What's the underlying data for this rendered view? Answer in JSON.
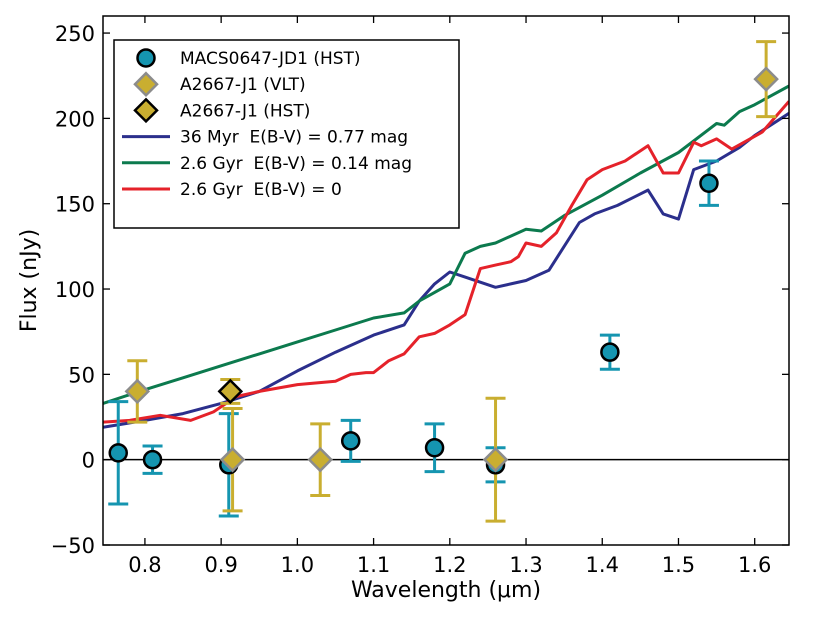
{
  "chart_data": {
    "type": "scatter",
    "xlabel": "Wavelength (μm)",
    "ylabel": "Flux (nJy)",
    "xlim": [
      0.745,
      1.645
    ],
    "ylim": [
      -50,
      260
    ],
    "x_ticks": [
      0.8,
      0.9,
      1.0,
      1.1,
      1.2,
      1.3,
      1.4,
      1.5,
      1.6
    ],
    "x_tick_labels": [
      "0.8",
      "0.9",
      "1.0",
      "1.1",
      "1.2",
      "1.3",
      "1.4",
      "1.5",
      "1.6"
    ],
    "y_ticks": [
      -50,
      0,
      50,
      100,
      150,
      200,
      250
    ],
    "y_tick_labels": [
      "−50",
      "0",
      "50",
      "100",
      "150",
      "200",
      "250"
    ],
    "grid": false,
    "zero_line": true,
    "legend_position": "top-left",
    "series": [
      {
        "name": "MACS0647-JD1 (HST)",
        "kind": "points",
        "marker": "circle",
        "color": "#1595b0",
        "edge_color": "#000000",
        "errbar_color": "#1595b0",
        "points": [
          {
            "x": 0.765,
            "y": 4,
            "err": 30
          },
          {
            "x": 0.81,
            "y": 0,
            "err": 8
          },
          {
            "x": 0.91,
            "y": -3,
            "err": 30
          },
          {
            "x": 1.07,
            "y": 11,
            "err": 12
          },
          {
            "x": 1.18,
            "y": 7,
            "err": 14
          },
          {
            "x": 1.26,
            "y": -3,
            "err": 10
          },
          {
            "x": 1.41,
            "y": 63,
            "err": 10
          },
          {
            "x": 1.54,
            "y": 162,
            "err": 13
          }
        ]
      },
      {
        "name": "A2667-J1 (VLT)",
        "kind": "points",
        "marker": "diamond",
        "color": "#c9ae30",
        "edge_color": "#8c8c8c",
        "errbar_color": "#c9ae30",
        "points": [
          {
            "x": 0.79,
            "y": 40,
            "err": 18
          },
          {
            "x": 0.915,
            "y": 0,
            "err": 30
          },
          {
            "x": 1.03,
            "y": 0,
            "err": 21
          },
          {
            "x": 1.26,
            "y": 0,
            "err": 36
          },
          {
            "x": 1.615,
            "y": 223,
            "err": 22
          }
        ]
      },
      {
        "name": "A2667-J1 (HST)",
        "kind": "points",
        "marker": "diamond",
        "color": "#c9ae30",
        "edge_color": "#000000",
        "errbar_color": "#c9ae30",
        "points": [
          {
            "x": 0.912,
            "y": 40,
            "err": 7
          }
        ]
      },
      {
        "name": "36 Myr  E(B-V) = 0.77 mag",
        "kind": "line",
        "color": "#2b2f8c",
        "x": [
          0.745,
          0.8,
          0.85,
          0.9,
          0.95,
          1.0,
          1.05,
          1.1,
          1.14,
          1.16,
          1.18,
          1.2,
          1.22,
          1.24,
          1.26,
          1.28,
          1.3,
          1.33,
          1.37,
          1.39,
          1.42,
          1.46,
          1.48,
          1.5,
          1.52,
          1.55,
          1.58,
          1.6,
          1.645
        ],
        "y": [
          19,
          23,
          27,
          33,
          40,
          52,
          63,
          73,
          79,
          93,
          103,
          110,
          107,
          104,
          101,
          103,
          105,
          111,
          139,
          144,
          149,
          158,
          144,
          141,
          170,
          175,
          183,
          190,
          203
        ]
      },
      {
        "name": "2.6 Gyr  E(B-V) = 0.14 mag",
        "kind": "line",
        "color": "#0c7a4e",
        "x": [
          0.745,
          0.8,
          0.85,
          0.9,
          0.95,
          1.0,
          1.05,
          1.1,
          1.14,
          1.16,
          1.18,
          1.2,
          1.22,
          1.24,
          1.26,
          1.28,
          1.3,
          1.32,
          1.35,
          1.4,
          1.45,
          1.5,
          1.55,
          1.56,
          1.58,
          1.6,
          1.645
        ],
        "y": [
          33,
          41,
          48,
          55,
          62,
          69,
          76,
          83,
          86,
          93,
          98,
          103,
          121,
          125,
          127,
          131,
          135,
          134,
          143,
          155,
          168,
          180,
          197,
          196,
          204,
          208,
          219
        ]
      },
      {
        "name": "2.6 Gyr  E(B-V) = 0",
        "kind": "line",
        "color": "#e5222a",
        "x": [
          0.745,
          0.78,
          0.82,
          0.86,
          0.89,
          0.92,
          0.95,
          1.0,
          1.05,
          1.07,
          1.09,
          1.1,
          1.12,
          1.14,
          1.16,
          1.18,
          1.2,
          1.22,
          1.24,
          1.26,
          1.28,
          1.29,
          1.3,
          1.32,
          1.34,
          1.36,
          1.38,
          1.4,
          1.43,
          1.46,
          1.48,
          1.5,
          1.52,
          1.53,
          1.55,
          1.57,
          1.59,
          1.61,
          1.645
        ],
        "y": [
          22,
          23,
          26,
          23,
          28,
          37,
          40,
          44,
          46,
          50,
          51,
          51,
          58,
          62,
          72,
          74,
          79,
          85,
          112,
          114,
          116,
          119,
          127,
          125,
          133,
          149,
          164,
          170,
          175,
          184,
          168,
          168,
          186,
          184,
          188,
          182,
          187,
          192,
          210
        ]
      }
    ]
  }
}
